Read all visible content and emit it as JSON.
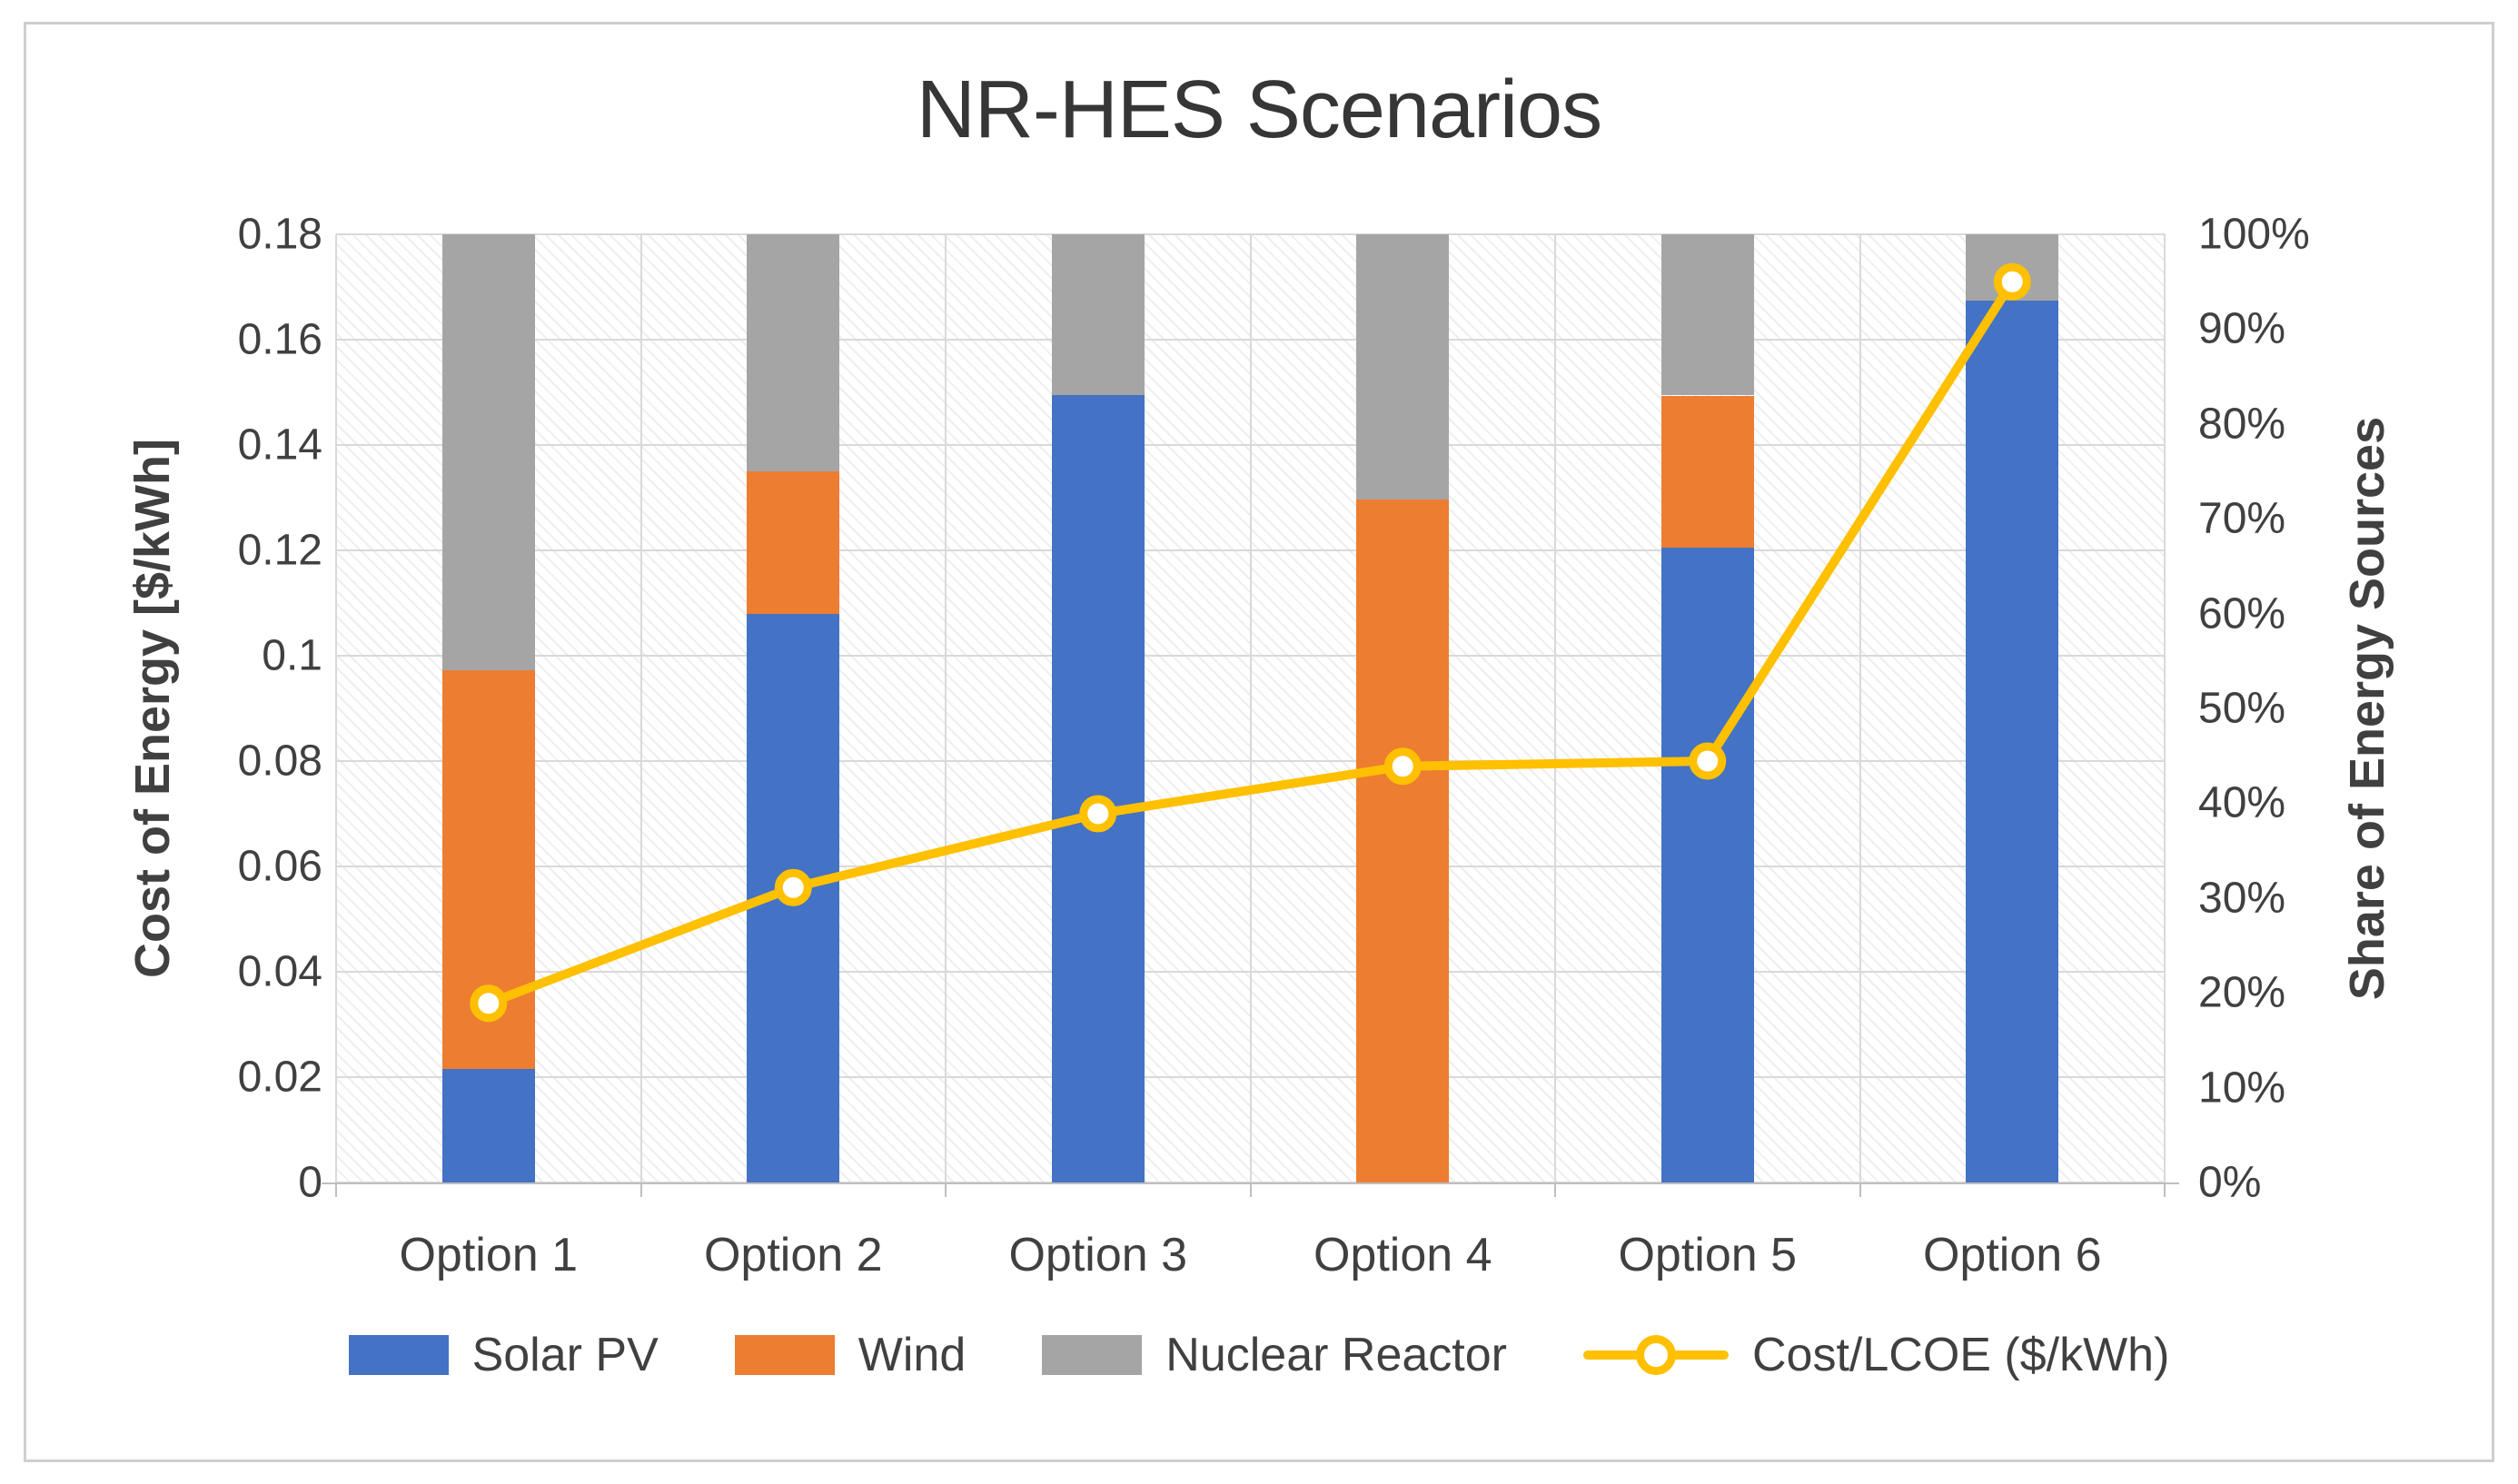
{
  "chart_data": {
    "type": "bar",
    "subtype": "100%-stacked-column-with-line-overlay",
    "title": "NR-HES Scenarios",
    "categories": [
      "Option 1",
      "Option 2",
      "Option 3",
      "Option 4",
      "Option 5",
      "Option 6"
    ],
    "series": [
      {
        "name": "Solar PV",
        "type": "bar",
        "color": "#4472C4",
        "unit": "%",
        "values": [
          12,
          60,
          83,
          0,
          67,
          93
        ]
      },
      {
        "name": "Wind",
        "type": "bar",
        "color": "#ED7D31",
        "unit": "%",
        "values": [
          42,
          15,
          0,
          72,
          16,
          0
        ]
      },
      {
        "name": "Nuclear Reactor",
        "type": "bar",
        "color": "#A5A5A5",
        "unit": "%",
        "values": [
          46,
          25,
          17,
          28,
          17,
          7
        ]
      },
      {
        "name": "Cost/LCOE ($/kWh)",
        "type": "line",
        "color": "#FFC000",
        "marker": "circle",
        "axis": "left",
        "unit": "$/kWh",
        "values": [
          0.034,
          0.056,
          0.07,
          0.079,
          0.08,
          0.171
        ]
      }
    ],
    "left_axis": {
      "title": "Cost of Energy [$/kWh]",
      "min": 0,
      "max": 0.18,
      "tick_step": 0.02,
      "ticks": [
        "0.18",
        "0.16",
        "0.14",
        "0.12",
        "0.1",
        "0.08",
        "0.06",
        "0.04",
        "0.02",
        "0"
      ]
    },
    "right_axis": {
      "title": "Share of Energy Sources",
      "min": "0%",
      "max": "100%",
      "tick_step": "10%",
      "ticks": [
        "100%",
        "90%",
        "80%",
        "70%",
        "60%",
        "50%",
        "40%",
        "30%",
        "20%",
        "10%",
        "0%"
      ]
    },
    "legend": {
      "position": "bottom",
      "entries": [
        "Solar PV",
        "Wind",
        "Nuclear Reactor",
        "Cost/LCOE ($/kWh)"
      ]
    },
    "grid": {
      "horizontal": true,
      "vertical": true,
      "plot_fill": "diagonal-hatch"
    },
    "colors": {
      "gridline": "#d9d9d9",
      "axis_line": "#bfbfbf",
      "axis_text": "#404040",
      "title_text": "#363636",
      "frame": "#cfcfcf"
    }
  }
}
